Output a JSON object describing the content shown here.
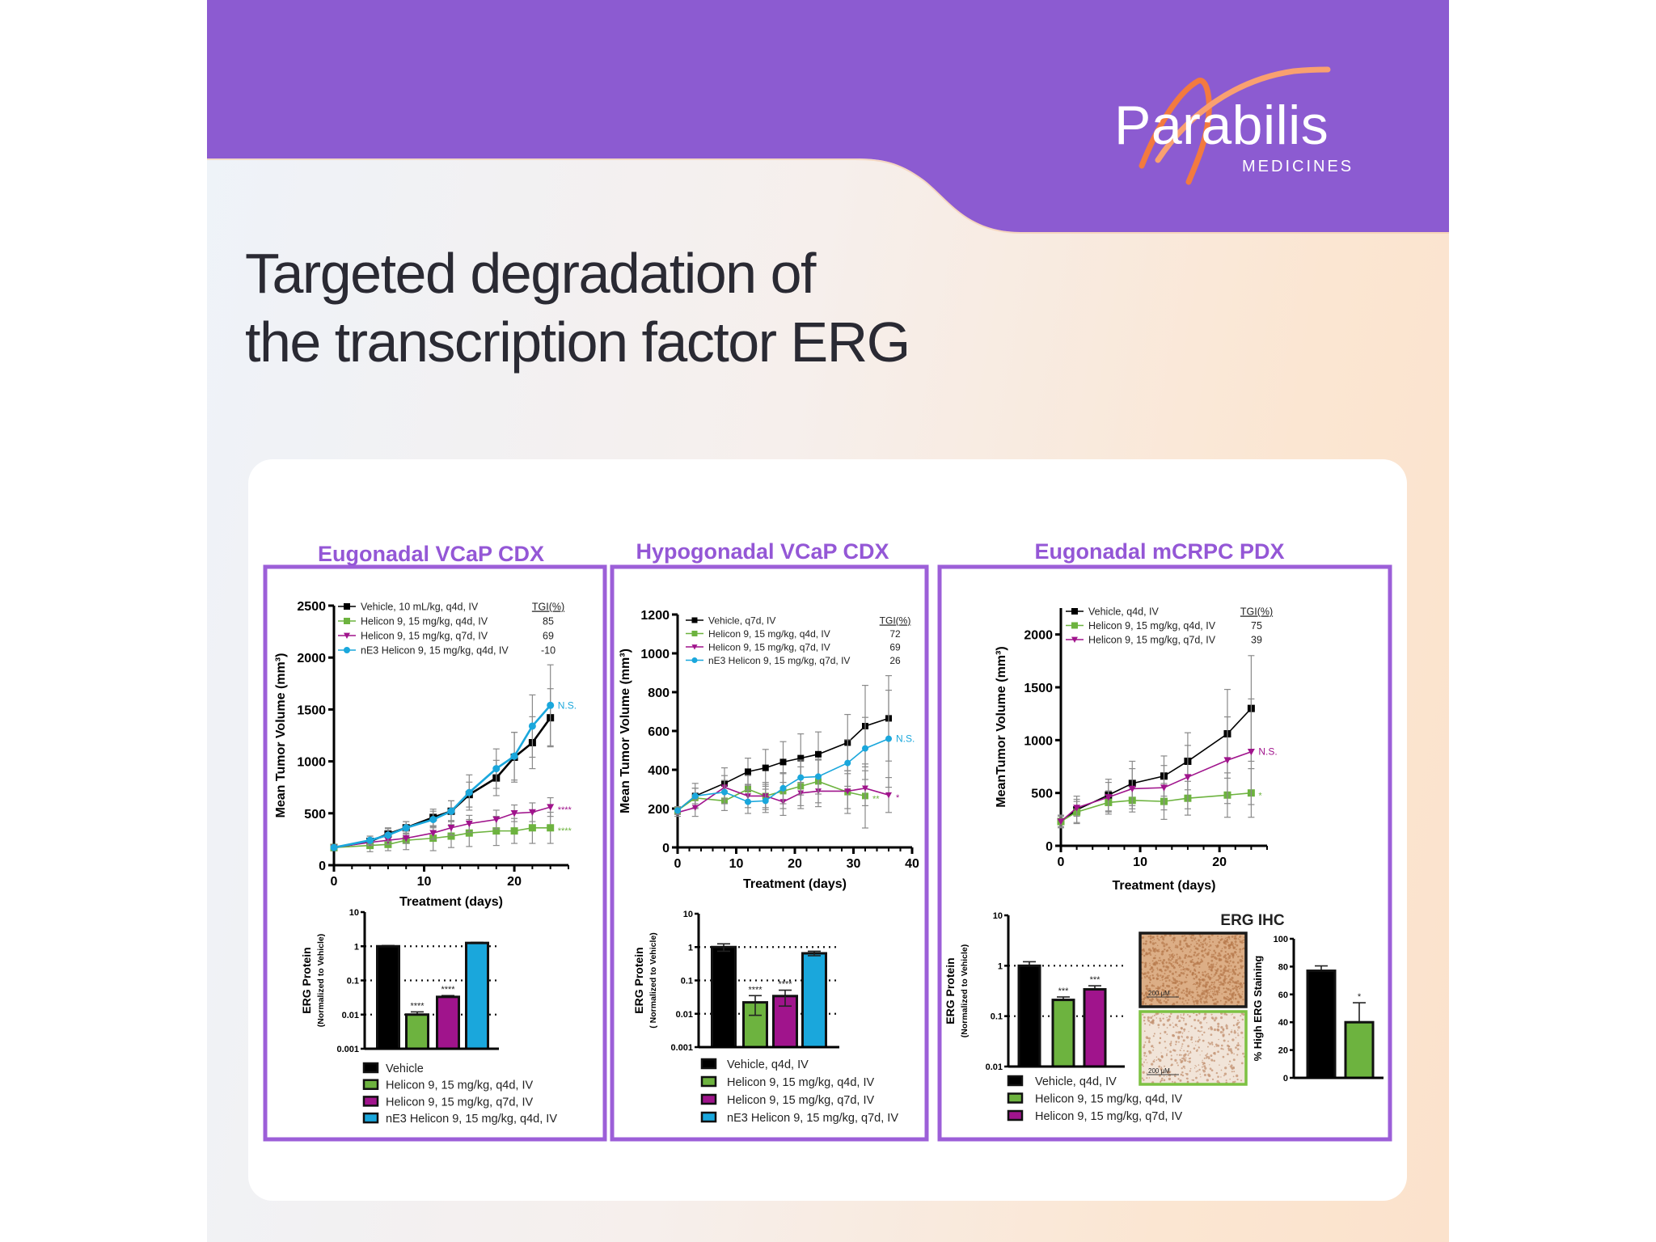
{
  "header": {
    "title_lines": [
      "Targeted degradation of",
      "the transcription factor ERG"
    ],
    "logo": {
      "name": "Parabilis",
      "sub": "MEDICINES"
    },
    "colors": {
      "header_bg": "#8c5bd1",
      "accent_orange": "#f37a3f",
      "accent_peach": "#f9b07a"
    }
  },
  "panels": [
    {
      "title": "Eugonadal VCaP CDX"
    },
    {
      "title": "Hypogonadal VCaP CDX"
    },
    {
      "title": "Eugonadal mCRPC PDX"
    }
  ],
  "chart_data": [
    {
      "id": "growth-eugonadal-vcap",
      "type": "line",
      "xlabel": "Treatment (days)",
      "ylabel": "Mean Tumor Volume (mm³)",
      "xlim": [
        0,
        26
      ],
      "ylim": [
        0,
        2500
      ],
      "xticks": [
        0,
        10,
        20
      ],
      "xminor": 2,
      "yticks": [
        0,
        500,
        1000,
        1500,
        2000,
        2500
      ],
      "legend_header": "TGI(%)",
      "legend_placement": "top-left",
      "series": [
        {
          "name": "Vehicle, 10 mL/kg, q4d, IV",
          "color": "#000000",
          "marker": "square",
          "tgi": "",
          "x": [
            0,
            4,
            6,
            8,
            11,
            13,
            15,
            18,
            20,
            22,
            24
          ],
          "y": [
            170,
            230,
            300,
            360,
            460,
            520,
            680,
            840,
            1040,
            1180,
            1420
          ],
          "err": [
            0,
            50,
            60,
            60,
            80,
            100,
            120,
            170,
            240,
            250,
            280
          ],
          "annotation": ""
        },
        {
          "name": "Helicon 9, 15 mg/kg, q4d, IV",
          "color": "#6db33f",
          "marker": "square",
          "tgi": "85",
          "x": [
            0,
            4,
            6,
            8,
            11,
            13,
            15,
            18,
            20,
            22,
            24
          ],
          "y": [
            170,
            190,
            200,
            240,
            260,
            280,
            310,
            330,
            330,
            360,
            360
          ],
          "err": [
            0,
            60,
            60,
            90,
            120,
            110,
            130,
            140,
            120,
            150,
            150
          ],
          "annotation": "****"
        },
        {
          "name": "Helicon 9, 15 mg/kg, q7d, IV",
          "color": "#a0148c",
          "marker": "triangle",
          "tgi": "69",
          "x": [
            0,
            4,
            6,
            8,
            11,
            13,
            15,
            18,
            20,
            22,
            24
          ],
          "y": [
            170,
            220,
            240,
            260,
            310,
            360,
            400,
            440,
            500,
            510,
            560
          ],
          "err": [
            0,
            30,
            40,
            50,
            60,
            70,
            80,
            90,
            80,
            90,
            90
          ],
          "annotation": "****"
        },
        {
          "name": "nE3 Helicon 9, 15 mg/kg, q4d, IV",
          "color": "#1aa7dc",
          "marker": "circle",
          "tgi": "-10",
          "x": [
            0,
            4,
            6,
            8,
            11,
            13,
            15,
            18,
            20,
            22,
            24
          ],
          "y": [
            170,
            240,
            290,
            360,
            440,
            520,
            700,
            930,
            1050,
            1340,
            1540
          ],
          "err": [
            0,
            40,
            60,
            60,
            80,
            100,
            170,
            190,
            230,
            300,
            390
          ],
          "annotation": "N.S."
        }
      ]
    },
    {
      "id": "erg-protein-eugonadal-vcap",
      "type": "bar",
      "scale": "log",
      "ylabel": "ERG Protein",
      "ylabel2": "(Normalized to Vehicle)",
      "ylim": [
        0.001,
        10
      ],
      "yticks": [
        0.001,
        0.01,
        0.1,
        1,
        10
      ],
      "ytick_labels": [
        "0.001",
        "0.01",
        "0.1",
        "1",
        "10"
      ],
      "grid": [
        0.01,
        0.1,
        1
      ],
      "categories": [
        "Vehicle",
        "Helicon 9, 15 mg/kg, q4d, IV",
        "Helicon 9, 15 mg/kg, q7d, IV",
        "nE3 Helicon 9, 15 mg/kg, q4d, IV"
      ],
      "values": [
        1.0,
        0.01,
        0.033,
        1.25
      ],
      "err": [
        0.05,
        0.002,
        0.003,
        0.05
      ],
      "colors": [
        "#000000",
        "#6db33f",
        "#a0148c",
        "#1aa7dc"
      ],
      "annotations": [
        "",
        "****",
        "****",
        ""
      ],
      "legend_placement": "bottom"
    },
    {
      "id": "growth-hypogonadal-vcap",
      "type": "line",
      "xlabel": "Treatment (days)",
      "ylabel": "Mean Tumor Volume (mm³)",
      "xlim": [
        0,
        40
      ],
      "ylim": [
        0,
        1200
      ],
      "xticks": [
        0,
        10,
        20,
        30,
        40
      ],
      "xminor": 2,
      "yticks": [
        0,
        200,
        400,
        600,
        800,
        1000,
        1200
      ],
      "legend_header": "TGI(%)",
      "legend_placement": "top-left",
      "series": [
        {
          "name": "Vehicle, q7d, IV",
          "color": "#000000",
          "marker": "square",
          "tgi": "",
          "x": [
            0,
            3,
            8,
            12,
            15,
            18,
            21,
            24,
            29,
            32,
            36
          ],
          "y": [
            190,
            265,
            330,
            390,
            410,
            440,
            460,
            480,
            540,
            625,
            665
          ],
          "err": [
            20,
            65,
            80,
            70,
            95,
            105,
            125,
            115,
            145,
            210,
            220
          ],
          "annotation": ""
        },
        {
          "name": "Helicon 9, 15 mg/kg, q4d, IV",
          "color": "#6db33f",
          "marker": "square",
          "tgi": "72",
          "x": [
            0,
            3,
            8,
            12,
            15,
            18,
            21,
            24,
            29,
            32
          ],
          "y": [
            190,
            255,
            240,
            300,
            265,
            290,
            315,
            340,
            285,
            265
          ],
          "err": [
            20,
            50,
            50,
            70,
            70,
            90,
            100,
            110,
            110,
            165
          ],
          "annotation": "**"
        },
        {
          "name": "Helicon 9, 15 mg/kg, q7d, IV",
          "color": "#a0148c",
          "marker": "triangle",
          "tgi": "69",
          "x": [
            0,
            3,
            8,
            12,
            15,
            18,
            21,
            24,
            29,
            32,
            36
          ],
          "y": [
            180,
            205,
            310,
            265,
            265,
            235,
            280,
            290,
            290,
            305,
            270
          ],
          "err": [
            20,
            45,
            60,
            60,
            60,
            70,
            80,
            80,
            90,
            90,
            90
          ],
          "annotation": "*"
        },
        {
          "name": "nE3 Helicon 9, 15 mg/kg, q7d, IV",
          "color": "#1aa7dc",
          "marker": "circle",
          "tgi": "26",
          "x": [
            0,
            3,
            8,
            12,
            15,
            18,
            21,
            24,
            29,
            32,
            36
          ],
          "y": [
            190,
            265,
            285,
            235,
            240,
            305,
            360,
            365,
            435,
            510,
            560
          ],
          "err": [
            20,
            40,
            60,
            60,
            60,
            80,
            90,
            90,
            120,
            160,
            250
          ],
          "annotation": "N.S."
        }
      ]
    },
    {
      "id": "erg-protein-hypogonadal-vcap",
      "type": "bar",
      "scale": "log",
      "ylabel": "ERG Protein",
      "ylabel2": "( Normalized to  Vehicle)",
      "ylim": [
        0.001,
        10
      ],
      "yticks": [
        0.001,
        0.01,
        0.1,
        1,
        10
      ],
      "ytick_labels": [
        "0.001",
        "0.01",
        "0.1",
        "1",
        "10"
      ],
      "grid": [
        0.01,
        0.1,
        1
      ],
      "categories": [
        "Vehicle, q4d, IV",
        "Helicon 9, 15 mg/kg, q4d,  IV",
        "Helicon 9, 15 mg/kg, q7d,  IV",
        "nE3 Helicon 9, 15 mg/kg, q7d,  IV"
      ],
      "values": [
        1.0,
        0.022,
        0.034,
        0.65
      ],
      "err": [
        0.25,
        0.013,
        0.017,
        0.1
      ],
      "colors": [
        "#000000",
        "#6db33f",
        "#a0148c",
        "#1aa7dc"
      ],
      "annotations": [
        "",
        "****",
        "****",
        ""
      ],
      "legend_placement": "bottom"
    },
    {
      "id": "growth-eugonadal-mcrpc",
      "type": "line",
      "xlabel": "Treatment (days)",
      "ylabel": "MeanTumor Volume (mm³)",
      "xlim": [
        0,
        26
      ],
      "ylim": [
        0,
        2250
      ],
      "xticks": [
        0,
        10,
        20
      ],
      "xminor": 2,
      "yticks": [
        0,
        500,
        1000,
        1500,
        2000
      ],
      "legend_header": "TGI(%)",
      "legend_placement": "top-left",
      "series": [
        {
          "name": "Vehicle, q4d, IV",
          "color": "#000000",
          "marker": "square",
          "tgi": "",
          "x": [
            0,
            2,
            6,
            9,
            13,
            16,
            21,
            24
          ],
          "y": [
            230,
            340,
            480,
            590,
            660,
            800,
            1060,
            1300
          ],
          "err": [
            60,
            130,
            150,
            210,
            190,
            270,
            420,
            500
          ],
          "annotation": ""
        },
        {
          "name": "Helicon 9, 15 mg/kg, q4d, IV",
          "color": "#6db33f",
          "marker": "square",
          "tgi": "75",
          "x": [
            0,
            2,
            6,
            9,
            13,
            16,
            21,
            24
          ],
          "y": [
            230,
            320,
            410,
            430,
            420,
            450,
            480,
            500
          ],
          "err": [
            50,
            100,
            110,
            110,
            170,
            160,
            210,
            230
          ],
          "annotation": "*"
        },
        {
          "name": "Helicon 9, 15 mg/kg, q7d, IV",
          "color": "#a0148c",
          "marker": "triangle",
          "tgi": "39",
          "x": [
            0,
            2,
            6,
            9,
            13,
            16,
            21,
            24
          ],
          "y": [
            230,
            360,
            460,
            540,
            550,
            650,
            810,
            890
          ],
          "err": [
            50,
            80,
            140,
            190,
            210,
            300,
            410,
            500
          ],
          "annotation": "N.S."
        }
      ]
    },
    {
      "id": "erg-protein-eugonadal-mcrpc",
      "type": "bar",
      "scale": "log",
      "ylabel": "ERG Protein",
      "ylabel2": "(Normalized to Vehicle)",
      "ylim": [
        0.01,
        10
      ],
      "yticks": [
        0.01,
        0.1,
        1,
        10
      ],
      "ytick_labels": [
        "0.01",
        "0.1",
        "1",
        "10"
      ],
      "grid": [
        0.1,
        1
      ],
      "categories": [
        "Vehicle, q4d, IV",
        "Helicon 9, 15 mg/kg, q4d,  IV",
        "Helicon 9, 15 mg/kg, q7d,  IV"
      ],
      "values": [
        1.0,
        0.21,
        0.34
      ],
      "err": [
        0.2,
        0.03,
        0.06
      ],
      "colors": [
        "#000000",
        "#6db33f",
        "#a0148c"
      ],
      "annotations": [
        "",
        "***",
        "***"
      ],
      "legend_placement": "bottom"
    },
    {
      "id": "erg-ihc-staining",
      "type": "bar",
      "scale": "linear",
      "title": "ERG IHC",
      "ylabel": "% High ERG Staining",
      "ylim": [
        0,
        100
      ],
      "yticks": [
        0,
        20,
        40,
        60,
        80,
        100
      ],
      "ytick_labels": [
        "0",
        "20",
        "40",
        "60",
        "80",
        "100"
      ],
      "grid": [],
      "values": [
        77,
        40
      ],
      "err": [
        3.5,
        14
      ],
      "colors": [
        "#000000",
        "#6db33f"
      ],
      "annotations": [
        "",
        "*"
      ],
      "image_labels": [
        "200 µM",
        "200 µM"
      ],
      "image_frame_colors": [
        "#1a1a1a",
        "#7dc142"
      ]
    }
  ]
}
